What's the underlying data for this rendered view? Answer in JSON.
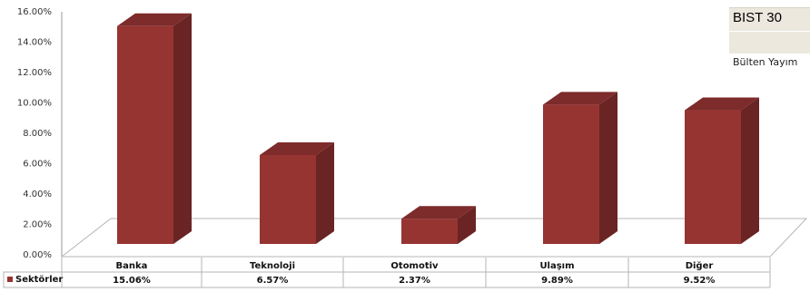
{
  "chart_data": {
    "type": "bar",
    "categories": [
      "Banka",
      "Teknoloji",
      "Otomotiv",
      "Ulaşım",
      "Diğer"
    ],
    "series": [
      {
        "name": "Sektörler",
        "values": [
          15.06,
          6.57,
          2.37,
          9.89,
          9.52
        ]
      }
    ],
    "value_labels": [
      "15.06%",
      "6.57%",
      "2.37%",
      "9.89%",
      "9.52%"
    ],
    "y_ticks": [
      "0.00%",
      "2.00%",
      "4.00%",
      "6.00%",
      "8.00%",
      "10.00%",
      "12.00%",
      "14.00%",
      "16.00%"
    ],
    "ylim": [
      0,
      16
    ],
    "legend": "data-table-below",
    "grid": false,
    "colors": {
      "bar_front": "#963432",
      "bar_side": "#6a2424",
      "bar_top": "#7d2b2b"
    }
  },
  "side_panel": {
    "title": "BIST 30",
    "subtitle": "Bülten Yayım"
  }
}
